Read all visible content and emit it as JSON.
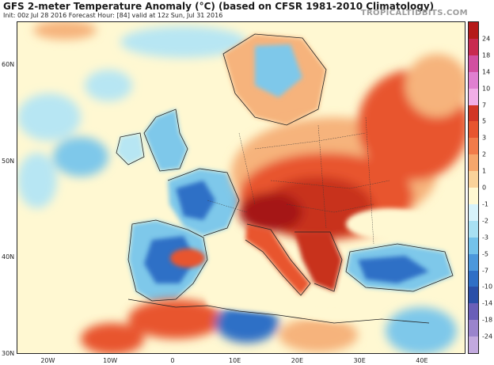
{
  "header": {
    "title": "GFS 2-meter Temperature Anomaly (°C) (based on CFSR 1981-2010 Climatology)",
    "subtitle": "Init: 00z Jul 28 2016   Forecast Hour: [84]   valid at 12z Sun, Jul 31 2016",
    "brand": "TROPICALTIDBITS.COM"
  },
  "axes": {
    "lat_labels": [
      {
        "text": "60N",
        "lat": 60
      },
      {
        "text": "50N",
        "lat": 50
      },
      {
        "text": "40N",
        "lat": 40
      },
      {
        "text": "30N",
        "lat": 30
      }
    ],
    "lon_labels": [
      {
        "text": "20W",
        "lon": -20
      },
      {
        "text": "10W",
        "lon": -10
      },
      {
        "text": "0",
        "lon": 0
      },
      {
        "text": "10E",
        "lon": 10
      },
      {
        "text": "20E",
        "lon": 20
      },
      {
        "text": "30E",
        "lon": 30
      },
      {
        "text": "40E",
        "lon": 40
      }
    ]
  },
  "colorbar": {
    "labels": [
      "24",
      "18",
      "14",
      "10",
      "7",
      "5",
      "3",
      "2",
      "1",
      "0",
      "-1",
      "-2",
      "-3",
      "-5",
      "-7",
      "-10",
      "-14",
      "-18",
      "-24"
    ],
    "colors": [
      "#b51a1a",
      "#c82a50",
      "#d24fa0",
      "#e07fd0",
      "#f1aee6",
      "#d23626",
      "#e8552f",
      "#f17b4a",
      "#f6a66c",
      "#fad29a",
      "#fff8d2",
      "#d7f2fa",
      "#a8e0f2",
      "#74c2ea",
      "#4c98dc",
      "#2f6fc6",
      "#2a4fa8",
      "#6a5fb8",
      "#9a84cc",
      "#c2a9de"
    ]
  },
  "map_colors": {
    "near_zero": "#fff8d2",
    "cool_light": "#b7e6f3",
    "cool_mid": "#7ec8ea",
    "cool_deep": "#2f6fc6",
    "warm_light": "#f6b37c",
    "warm_mid": "#e8552f",
    "warm_deep": "#a51515",
    "coast": "#222222"
  }
}
